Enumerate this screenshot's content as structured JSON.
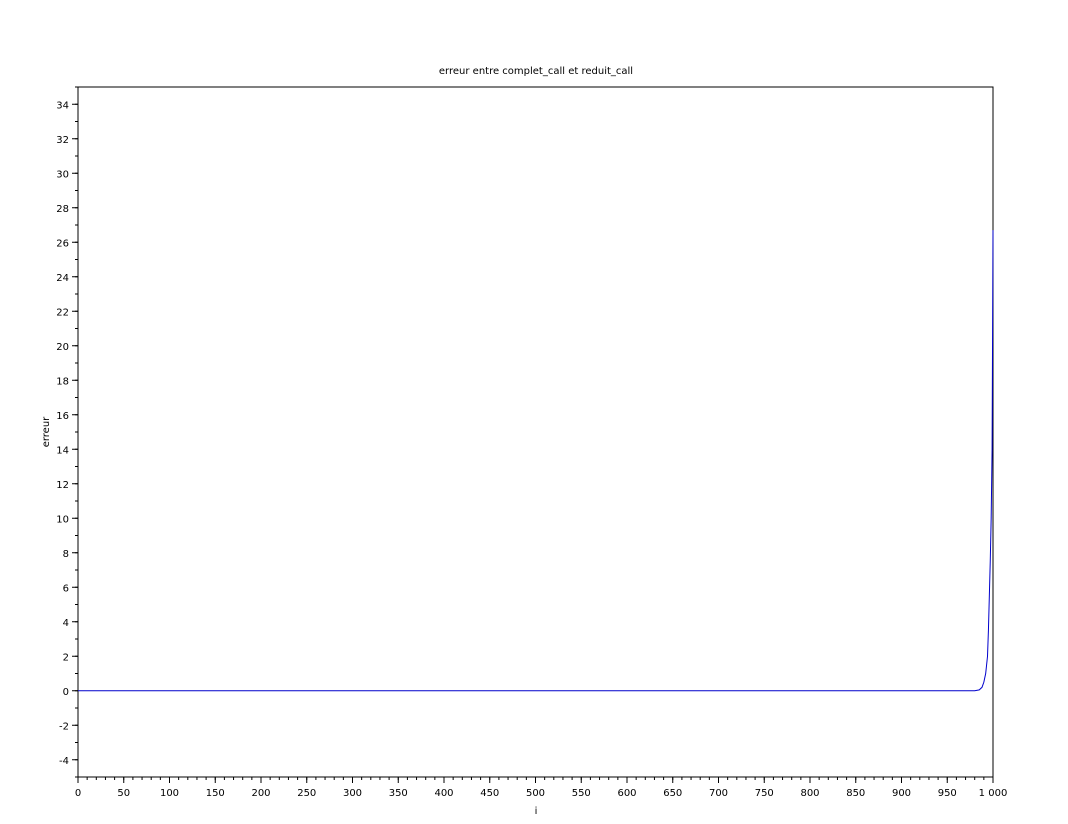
{
  "chart_data": {
    "type": "line",
    "title": "erreur entre complet_call et reduit_call",
    "xlabel": "i",
    "ylabel": "erreur",
    "xlim": [
      0,
      1000
    ],
    "ylim": [
      -5,
      35
    ],
    "xticks": [
      0,
      50,
      100,
      150,
      200,
      250,
      300,
      350,
      400,
      450,
      500,
      550,
      600,
      650,
      700,
      750,
      800,
      850,
      900,
      950,
      1000
    ],
    "xtick_labels": [
      "0",
      "50",
      "100",
      "150",
      "200",
      "250",
      "300",
      "350",
      "400",
      "450",
      "500",
      "550",
      "600",
      "650",
      "700",
      "750",
      "800",
      "850",
      "900",
      "950",
      "1 000"
    ],
    "yticks": [
      -4,
      -2,
      0,
      2,
      4,
      6,
      8,
      10,
      12,
      14,
      16,
      18,
      20,
      22,
      24,
      26,
      28,
      30,
      32,
      34
    ],
    "ytick_labels": [
      "-4",
      "-2",
      "0",
      "2",
      "4",
      "6",
      "8",
      "10",
      "12",
      "14",
      "16",
      "18",
      "20",
      "22",
      "24",
      "26",
      "28",
      "30",
      "32",
      "34"
    ],
    "grid": false,
    "line_color": "#0000cc",
    "series": [
      {
        "x": [
          0,
          100,
          200,
          300,
          400,
          500,
          600,
          700,
          800,
          900,
          950,
          980,
          985,
          988,
          990,
          992,
          994,
          995,
          996,
          997,
          998,
          999,
          1000
        ],
        "y": [
          0,
          0,
          0,
          0,
          0,
          0,
          0,
          0,
          0,
          0,
          0,
          0,
          0.05,
          0.2,
          0.5,
          1,
          2,
          3.5,
          5.5,
          7.5,
          10,
          14,
          26.7
        ]
      }
    ]
  }
}
